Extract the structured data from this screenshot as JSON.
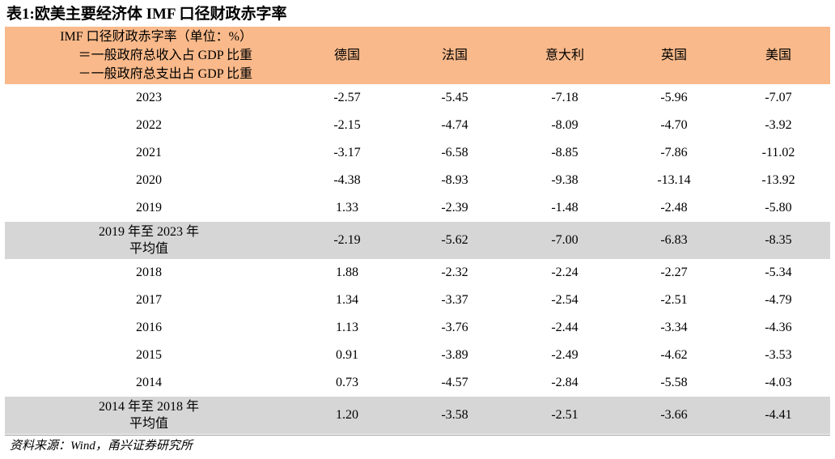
{
  "title": "表1:欧美主要经济体 IMF 口径财政赤字率",
  "header": {
    "label_lines": [
      "IMF 口径财政赤字率（单位：%）",
      "＝一般政府总收入占 GDP 比重",
      "－一般政府总支出占 GDP 比重"
    ],
    "columns": [
      "德国",
      "法国",
      "意大利",
      "英国",
      "美国"
    ]
  },
  "rows": [
    {
      "label": "2023",
      "values": [
        "-2.57",
        "-5.45",
        "-7.18",
        "-5.96",
        "-7.07"
      ]
    },
    {
      "label": "2022",
      "values": [
        "-2.15",
        "-4.74",
        "-8.09",
        "-4.70",
        "-3.92"
      ]
    },
    {
      "label": "2021",
      "values": [
        "-3.17",
        "-6.58",
        "-8.85",
        "-7.86",
        "-11.02"
      ]
    },
    {
      "label": "2020",
      "values": [
        "-4.38",
        "-8.93",
        "-9.38",
        "-13.14",
        "-13.92"
      ]
    },
    {
      "label": "2019",
      "values": [
        "1.33",
        "-2.39",
        "-1.48",
        "-2.48",
        "-5.80"
      ]
    },
    {
      "label_lines": [
        "2019 年至 2023 年",
        "平均值"
      ],
      "values": [
        "-2.19",
        "-5.62",
        "-7.00",
        "-6.83",
        "-8.35"
      ]
    },
    {
      "label": "2018",
      "values": [
        "1.88",
        "-2.32",
        "-2.24",
        "-2.27",
        "-5.34"
      ]
    },
    {
      "label": "2017",
      "values": [
        "1.34",
        "-3.37",
        "-2.54",
        "-2.51",
        "-4.79"
      ]
    },
    {
      "label": "2016",
      "values": [
        "1.13",
        "-3.76",
        "-2.44",
        "-3.34",
        "-4.36"
      ]
    },
    {
      "label": "2015",
      "values": [
        "0.91",
        "-3.89",
        "-2.49",
        "-4.62",
        "-3.53"
      ]
    },
    {
      "label": "2014",
      "values": [
        "0.73",
        "-4.57",
        "-2.84",
        "-5.58",
        "-4.03"
      ]
    },
    {
      "label_lines": [
        "2014 年至 2018 年",
        "平均值"
      ],
      "values": [
        "1.20",
        "-3.58",
        "-2.51",
        "-3.66",
        "-4.41"
      ]
    }
  ],
  "source": "资料来源：Wind，甬兴证券研究所",
  "colors": {
    "header_bg": "#f9b98a",
    "average_row_bg": "#d6d6d6"
  }
}
